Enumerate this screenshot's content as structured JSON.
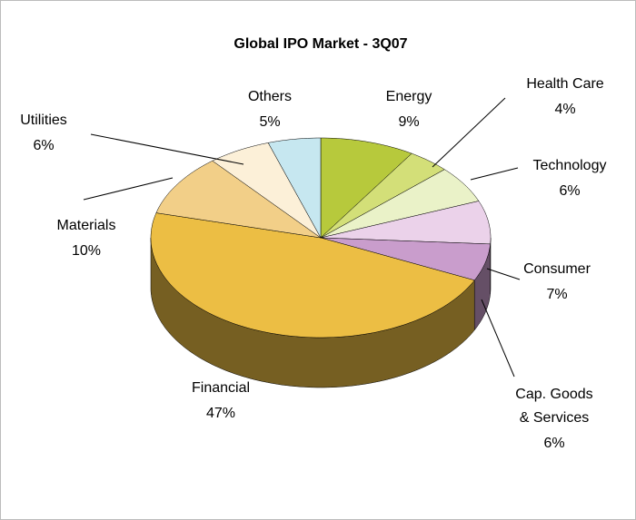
{
  "chart_data": {
    "type": "pie",
    "title": "Global IPO Market - 3Q07",
    "categories": [
      "Energy",
      "Health Care",
      "Technology",
      "Consumer",
      "Cap. Goods & Services",
      "Financial",
      "Materials",
      "Utilities",
      "Others"
    ],
    "values": [
      9,
      4,
      6,
      7,
      6,
      47,
      10,
      6,
      5
    ],
    "value_labels": [
      "9%",
      "4%",
      "6%",
      "7%",
      "6%",
      "47%",
      "10%",
      "6%",
      "5%"
    ],
    "colors": [
      "#b7c93c",
      "#d3df78",
      "#eaf2c8",
      "#ebd2ea",
      "#c99dcc",
      "#ecbe44",
      "#f2cf88",
      "#fcf0d8",
      "#c6e7f0"
    ]
  }
}
